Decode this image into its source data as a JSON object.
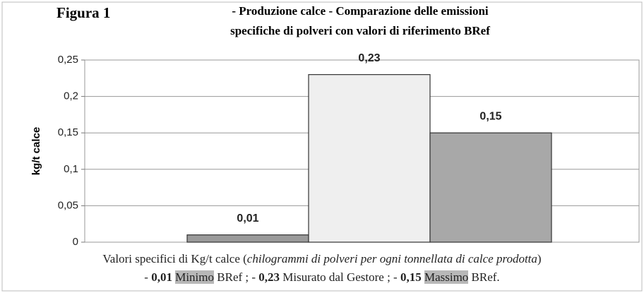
{
  "chart_data": {
    "type": "bar",
    "figure_label": "Figura 1",
    "title": [
      "- Produzione calce - Comparazione delle emissioni",
      "specifiche di polveri con valori di riferimento BRef"
    ],
    "ylabel": "kg/t calce",
    "values": [
      0.01,
      0.23,
      0.15
    ],
    "value_labels": [
      "0,01",
      "0,23",
      "0,15"
    ],
    "colors": [
      "#9a9a9a",
      "#efefef",
      "#a8a8a8"
    ],
    "ylim": [
      0,
      0.25
    ],
    "yticks": [
      0,
      {
        "value": 0.05,
        "label": "0,05"
      },
      {
        "value": 0.1,
        "label": "0,1"
      },
      {
        "value": 0.15,
        "label": "0,15"
      },
      {
        "value": 0.2,
        "label": "0,2"
      },
      {
        "value": 0.25,
        "label": "0,25"
      }
    ],
    "grid": true,
    "caption": {
      "line1": [
        "Valori specifici di Kg/t calce (",
        "chilogrammi di polveri per ogni tonnellata di calce prodotta",
        ")"
      ],
      "line2": [
        "- ",
        "0,01",
        " ",
        "Minimo",
        " BRef ; - ",
        "0,23",
        " Misurato dal Gestore ; - ",
        "0,15",
        " ",
        "Massimo",
        " BRef."
      ]
    }
  }
}
